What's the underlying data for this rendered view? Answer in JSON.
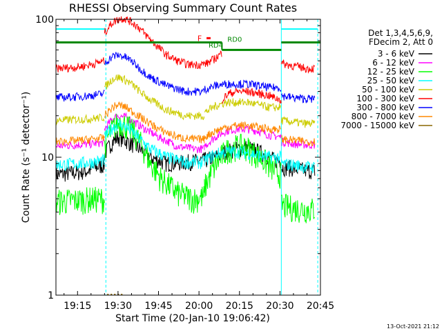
{
  "chart_data": {
    "type": "line",
    "title": "RHESSI Observing Summary Count Rates",
    "xlabel": "Start Time (20-Jan-10 19:06:42)",
    "ylabel": "Count Rate (s⁻¹ detector⁻¹)",
    "yscale": "log",
    "xlim_min": [
      7,
      105
    ],
    "ylim": [
      1,
      100
    ],
    "x_ticks": [
      {
        "min": 15,
        "label": "19:15"
      },
      {
        "min": 30,
        "label": "19:30"
      },
      {
        "min": 45,
        "label": "19:45"
      },
      {
        "min": 60,
        "label": "20:00"
      },
      {
        "min": 75,
        "label": "20:15"
      },
      {
        "min": 90,
        "label": "20:30"
      },
      {
        "min": 105,
        "label": "20:45"
      }
    ],
    "y_ticks": [
      {
        "value": 1,
        "label": "1"
      },
      {
        "value": 10,
        "label": "10"
      },
      {
        "value": 100,
        "label": "100"
      }
    ],
    "legend_header": [
      "Det 1,3,4,5,6,9,",
      "FDecim 2, Att 0"
    ],
    "series": [
      {
        "name": "3 - 6 keV",
        "color": "#000000",
        "segments": [
          {
            "t": [
              7,
              16,
              19,
              22,
              25
            ],
            "v": [
              7.5,
              7.8,
              8.0,
              8.5,
              8.8
            ]
          },
          {
            "t": [
              25,
              28,
              30,
              32,
              35,
              38,
              42,
              48,
              55,
              62
            ],
            "v": [
              10.5,
              13,
              14,
              13.5,
              12.5,
              11.5,
              10,
              9,
              9.2,
              9.5
            ]
          },
          {
            "t": [
              62,
              66,
              70,
              74,
              78,
              82,
              86,
              88,
              90.5
            ],
            "v": [
              9.5,
              10,
              11,
              11.5,
              11.8,
              11,
              10,
              9.5,
              9.5
            ]
          },
          {
            "t": [
              90.5,
              95,
              100,
              103
            ],
            "v": [
              8.5,
              8.3,
              8,
              8
            ]
          }
        ]
      },
      {
        "name": "6 - 12 keV",
        "color": "#ff00ff",
        "segments": [
          {
            "t": [
              7,
              15,
              20,
              25
            ],
            "v": [
              12,
              12.3,
              12.5,
              12.8
            ]
          },
          {
            "t": [
              25,
              28,
              30,
              33,
              36,
              40,
              45,
              52,
              58,
              62
            ],
            "v": [
              16,
              19,
              20,
              19.5,
              18,
              16,
              14,
              12,
              11.5,
              11.5
            ]
          },
          {
            "t": [
              62,
              66,
              70,
              74,
              78,
              82,
              86,
              90.5
            ],
            "v": [
              12,
              14,
              15.5,
              16,
              16,
              15.5,
              14.5,
              14
            ]
          },
          {
            "t": [
              90.5,
              95,
              100,
              103
            ],
            "v": [
              13,
              12.5,
              12.3,
              12.3
            ]
          }
        ]
      },
      {
        "name": "12 - 25 keV",
        "color": "#00ff00",
        "segments": [
          {
            "t": [
              7,
              15,
              20,
              25
            ],
            "v": [
              4.8,
              4.9,
              5,
              5
            ]
          },
          {
            "t": [
              25,
              27,
              29,
              31,
              33,
              36,
              39,
              42,
              46,
              52,
              58,
              62
            ],
            "v": [
              12,
              15,
              17,
              18,
              17,
              15,
              12,
              9,
              7,
              5.5,
              5,
              5.2
            ]
          },
          {
            "t": [
              62,
              65,
              68,
              71,
              74,
              77,
              80,
              84,
              88,
              90.5
            ],
            "v": [
              6,
              8,
              10,
              11.5,
              12,
              12,
              11,
              9.5,
              8,
              7.5
            ]
          },
          {
            "t": [
              90.5,
              95,
              100,
              103
            ],
            "v": [
              4.5,
              4.3,
              4.2,
              4.2
            ]
          }
        ]
      },
      {
        "name": "25 - 50 keV",
        "color": "#00ffff",
        "segments": [
          {
            "t": [
              7,
              15,
              20,
              25
            ],
            "v": [
              8.8,
              9,
              9.2,
              9.5
            ]
          },
          {
            "t": [
              25,
              28,
              30,
              32,
              35,
              38,
              42,
              48,
              55,
              62
            ],
            "v": [
              14,
              16.5,
              17.5,
              17,
              15.5,
              13.5,
              11.5,
              10,
              9.2,
              9.2
            ]
          },
          {
            "t": [
              62,
              66,
              70,
              74,
              78,
              82,
              86,
              90.5
            ],
            "v": [
              9.5,
              10.5,
              11,
              11,
              10.8,
              10.3,
              10,
              10
            ]
          },
          {
            "t": [
              90.5,
              95,
              100,
              103
            ],
            "v": [
              9,
              8.8,
              8.5,
              8.5
            ]
          }
        ]
      },
      {
        "name": "50 - 100 keV",
        "color": "#cccc00",
        "segments": [
          {
            "t": [
              7,
              15,
              20,
              25
            ],
            "v": [
              18.5,
              18.8,
              19,
              19.5
            ]
          },
          {
            "t": [
              25,
              28,
              30,
              32,
              35,
              38,
              42,
              48,
              55,
              62
            ],
            "v": [
              32,
              37,
              38,
              37,
              34,
              30,
              26,
              22,
              20,
              20
            ]
          },
          {
            "t": [
              62,
              66,
              70,
              74,
              78,
              82,
              86,
              90.5
            ],
            "v": [
              21,
              23.5,
              25,
              25,
              25,
              24,
              23,
              23
            ]
          },
          {
            "t": [
              90.5,
              95,
              100,
              103
            ],
            "v": [
              18.5,
              18,
              17.5,
              17.5
            ]
          }
        ]
      },
      {
        "name": "100 - 300 keV",
        "color": "#ff0000",
        "segments": [
          {
            "t": [
              7,
              15,
              20,
              25
            ],
            "v": [
              44,
              45,
              47,
              50
            ]
          },
          {
            "t": [
              25,
              28,
              30,
              32,
              34,
              37,
              40,
              44,
              48,
              52,
              56,
              60,
              63,
              66,
              68.5
            ],
            "v": [
              80,
              95,
              100,
              102,
              98,
              90,
              78,
              65,
              55,
              50,
              47,
              47,
              48,
              52,
              57
            ]
          },
          {
            "t": [
              68.5,
              71,
              74,
              78,
              82,
              86,
              88,
              90.5
            ],
            "v": [
              26,
              29,
              30,
              30,
              29,
              28,
              27,
              26
            ]
          },
          {
            "t": [
              90.5,
              95,
              100,
              103
            ],
            "v": [
              48,
              46,
              44,
              44
            ]
          }
        ]
      },
      {
        "name": "300 - 800 keV",
        "color": "#0000ff",
        "segments": [
          {
            "t": [
              7,
              15,
              20,
              25
            ],
            "v": [
              27,
              27.5,
              28,
              29
            ]
          },
          {
            "t": [
              25,
              28,
              30,
              32,
              35,
              38,
              42,
              48,
              55,
              62
            ],
            "v": [
              48,
              54,
              55,
              54,
              50,
              44,
              38,
              33,
              30,
              30
            ]
          },
          {
            "t": [
              62,
              66,
              70,
              74,
              78,
              82,
              86,
              90.5
            ],
            "v": [
              31,
              33,
              34,
              34,
              34,
              33,
              32,
              32
            ]
          },
          {
            "t": [
              90.5,
              95,
              100,
              103
            ],
            "v": [
              28,
              27,
              26.5,
              26.5
            ]
          }
        ]
      },
      {
        "name": "800 - 7000 keV",
        "color": "#ff8800",
        "segments": [
          {
            "t": [
              7,
              15,
              20,
              25
            ],
            "v": [
              13,
              13.2,
              13.5,
              13.8
            ]
          },
          {
            "t": [
              25,
              28,
              30,
              33,
              36,
              40,
              45,
              52,
              58,
              62
            ],
            "v": [
              20,
              23,
              24,
              23,
              21,
              18.5,
              16,
              14,
              13.5,
              13.5
            ]
          },
          {
            "t": [
              62,
              66,
              70,
              74,
              78,
              82,
              86,
              90.5
            ],
            "v": [
              14,
              15.5,
              16.5,
              17,
              17,
              16.5,
              16,
              16
            ]
          },
          {
            "t": [
              90.5,
              95,
              100,
              103
            ],
            "v": [
              13.5,
              13.3,
              13,
              13
            ]
          }
        ]
      },
      {
        "name": "7000 - 15000 keV",
        "color": "#886600",
        "segments": [
          {
            "t": [
              26,
              32
            ],
            "v": [
              1,
              1
            ]
          }
        ]
      }
    ],
    "decimation_level": {
      "color": "#008800",
      "segments": [
        {
          "t": [
            7,
            68.5
          ],
          "v": 68
        },
        {
          "t": [
            68.5,
            90.5
          ],
          "v": 60
        },
        {
          "t": [
            90.5,
            105
          ],
          "v": 68
        }
      ]
    },
    "saa_marks": {
      "color": "#00ffff",
      "segments": [
        {
          "t": [
            7,
            25.5
          ],
          "v": 85
        },
        {
          "t": [
            90.5,
            104
          ],
          "v": 85
        }
      ]
    },
    "night_edges": {
      "solid": [
        7,
        90.5
      ],
      "dashed": [
        25.5,
        104
      ]
    },
    "flare_mark": {
      "label": "F",
      "color": "#ff0000",
      "t": [
        62.8,
        64.3
      ],
      "v": 73
    },
    "annotations": [
      {
        "text": "RD0",
        "color": "#008800",
        "t": 69,
        "v": 68
      },
      {
        "text": "RD4",
        "color": "#008800",
        "t": 62,
        "v": 61.5
      }
    ]
  },
  "timestamp": "13-Oct-2021 21:12"
}
